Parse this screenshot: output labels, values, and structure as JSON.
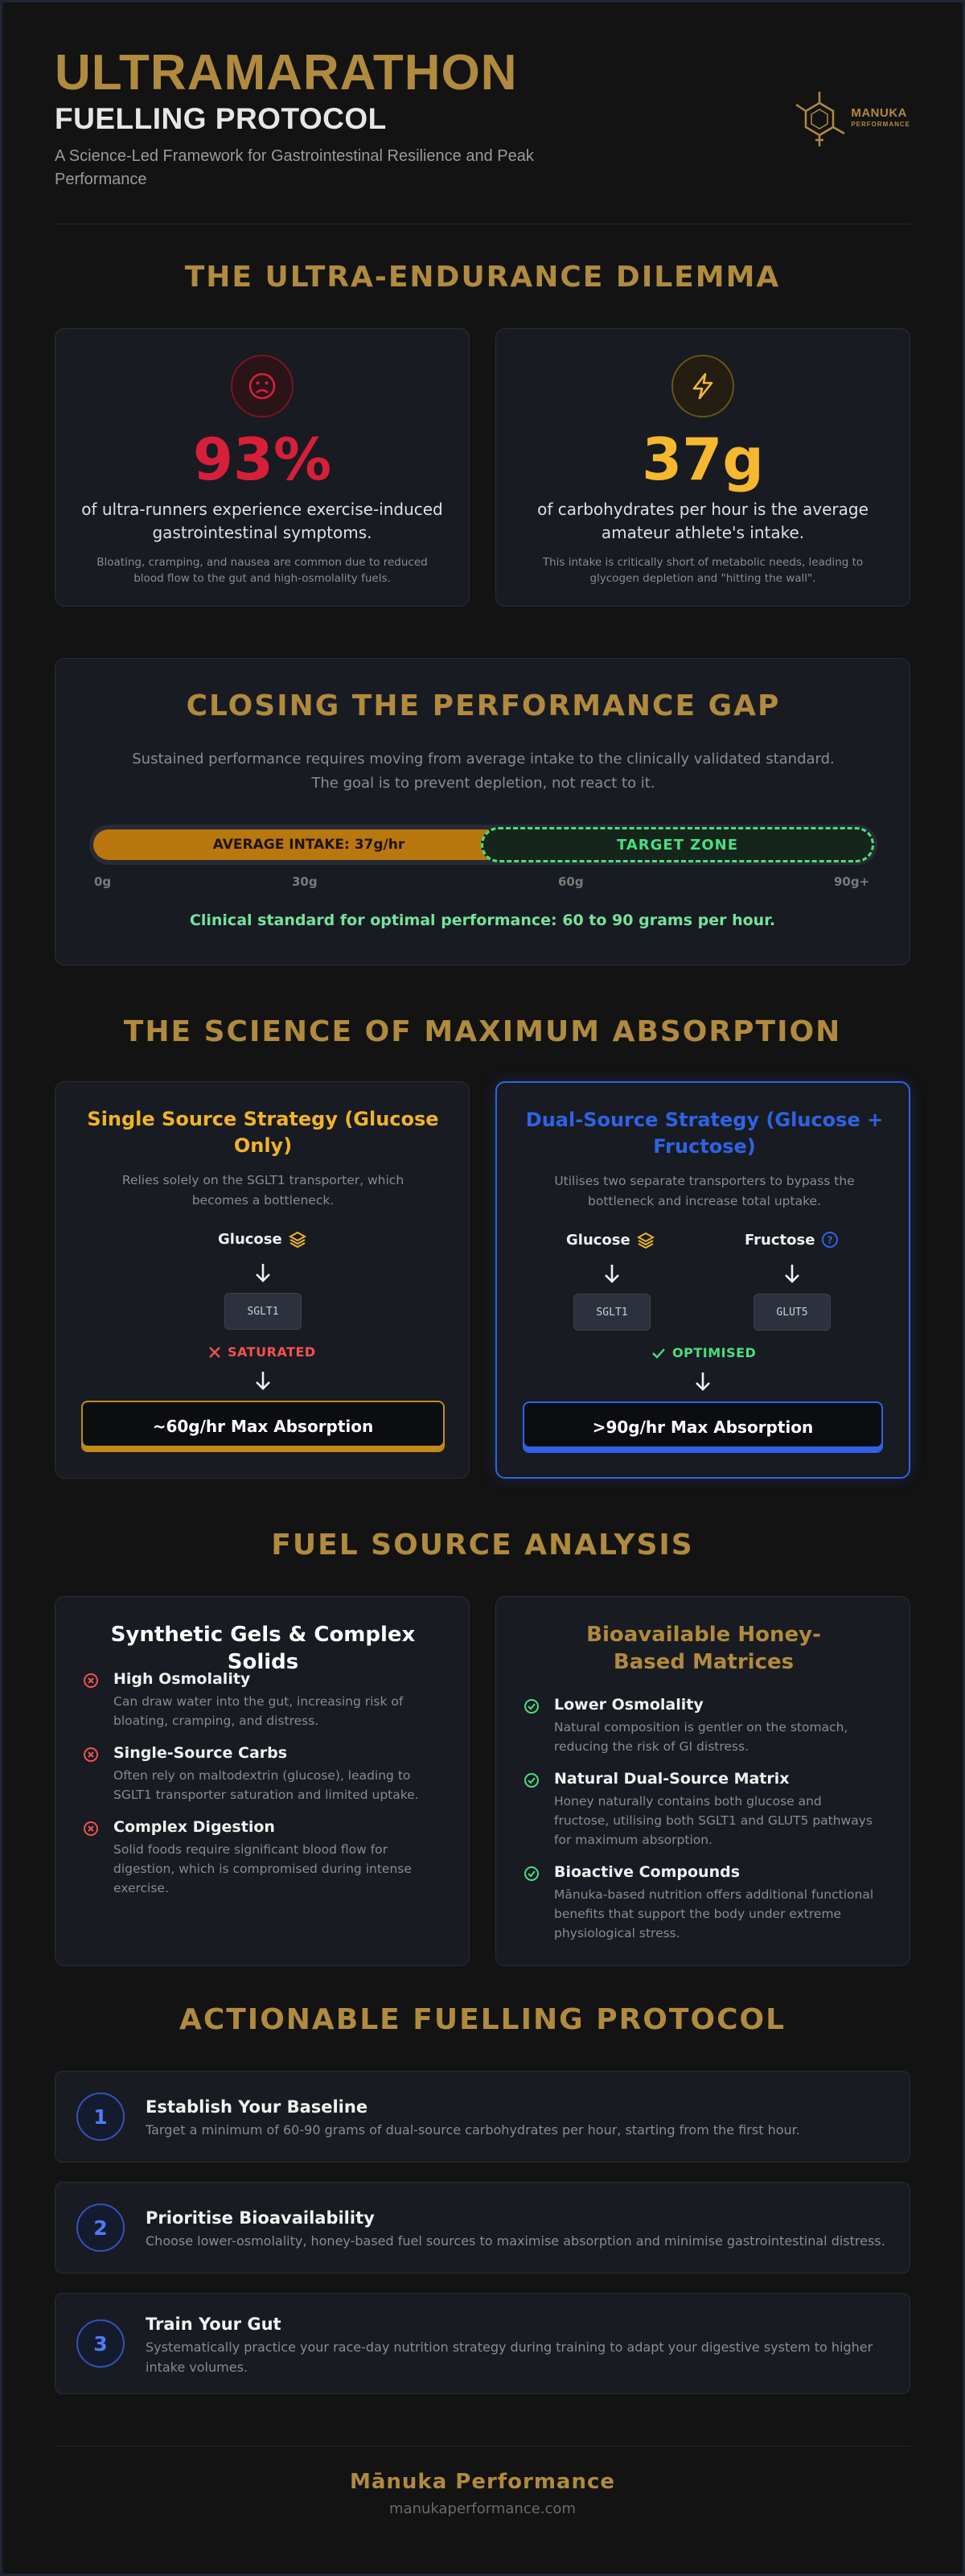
{
  "header": {
    "title": "ULTRAMARATHON",
    "subtitle": "FUELLING PROTOCOL",
    "description": "A Science-Led Framework for Gastrointestinal Resilience and Peak Performance",
    "logo_name": "MANUKA",
    "logo_tag": "PERFORMANCE",
    "logo_icon": "molecule-icon"
  },
  "dilemma": {
    "title": "THE ULTRA-ENDURANCE DILEMMA",
    "cards": [
      {
        "value": "93%",
        "lead": "of ultra-runners experience exercise-induced gastrointestinal symptoms.",
        "fine": "Bloating, cramping, and nausea are common due to reduced blood flow to the gut and high-osmolality fuels.",
        "color": "#d81f3a",
        "icon": "frown-face-icon"
      },
      {
        "value": "37g",
        "lead": "of carbohydrates per hour is the average amateur athlete's intake.",
        "fine": "This intake is critically short of metabolic needs, leading to glycogen depletion and \"hitting the wall\".",
        "color": "#f5b82e",
        "icon": "lightning-bolt-icon"
      }
    ]
  },
  "gap": {
    "title": "CLOSING THE PERFORMANCE GAP",
    "desc_1": "Sustained performance requires moving from average intake to the clinically validated standard.",
    "desc_2": "The goal is to prevent depletion, not react to it.",
    "average_label": "AVERAGE INTAKE: 37g/hr",
    "average_value": 37,
    "target_label": "TARGET ZONE",
    "target_range": [
      60,
      90
    ],
    "scale_max": 90,
    "ticks": [
      "0g",
      "30g",
      "60g",
      "90g+"
    ],
    "clinical": "Clinical standard for optimal performance: 60 to 90 grams per hour."
  },
  "science": {
    "title": "THE SCIENCE OF MAXIMUM ABSORPTION",
    "single": {
      "title": "Single Source Strategy (Glucose Only)",
      "desc": "Relies solely on the SGLT1 transporter, which becomes a bottleneck.",
      "sugar": "Glucose",
      "transporter": "SGLT1",
      "status": "SATURATED",
      "max": "~60g/hr Max Absorption",
      "color": "#f0b429"
    },
    "dual": {
      "title": "Dual-Source Strategy (Glucose + Fructose)",
      "desc": "Utilises two separate transporters to bypass the bottleneck and increase total uptake.",
      "sugar_a": "Glucose",
      "sugar_b": "Fructose",
      "transporter_a": "SGLT1",
      "transporter_b": "GLUT5",
      "status": "OPTIMISED",
      "max": ">90g/hr Max Absorption",
      "color": "#2f63e6"
    }
  },
  "fuel": {
    "title": "FUEL SOURCE ANALYSIS",
    "synthetic": {
      "title": "Synthetic Gels & Complex Solids",
      "items": [
        {
          "title": "High Osmolality",
          "desc": "Can draw water into the gut, increasing risk of bloating, cramping, and distress."
        },
        {
          "title": "Single-Source Carbs",
          "desc": "Often rely on maltodextrin (glucose), leading to SGLT1 transporter saturation and limited uptake."
        },
        {
          "title": "Complex Digestion",
          "desc": "Solid foods require significant blood flow for digestion, which is compromised during intense exercise."
        }
      ]
    },
    "honey": {
      "title": "Bioavailable Honey-Based Matrices",
      "items": [
        {
          "title": "Lower Osmolality",
          "desc": "Natural composition is gentler on the stomach, reducing the risk of GI distress."
        },
        {
          "title": "Natural Dual-Source Matrix",
          "desc": "Honey naturally contains both glucose and fructose, utilising both SGLT1 and GLUT5 pathways for maximum absorption."
        },
        {
          "title": "Bioactive Compounds",
          "desc": "Mānuka-based nutrition offers additional functional benefits that support the body under extreme physiological stress."
        }
      ]
    }
  },
  "protocol": {
    "title": "ACTIONABLE FUELLING PROTOCOL",
    "steps": [
      {
        "num": "1",
        "title": "Establish Your Baseline",
        "desc": "Target a minimum of 60-90 grams of dual-source carbohydrates per hour, starting from the first hour."
      },
      {
        "num": "2",
        "title": "Prioritise Bioavailability",
        "desc": "Choose lower-osmolality, honey-based fuel sources to maximise absorption and minimise gastrointestinal distress."
      },
      {
        "num": "3",
        "title": "Train Your Gut",
        "desc": "Systematically practice your race-day nutrition strategy during training to adapt your digestive system to higher intake volumes."
      }
    ]
  },
  "footer": {
    "brand": "Mānuka Performance",
    "url": "manukaperformance.com"
  }
}
